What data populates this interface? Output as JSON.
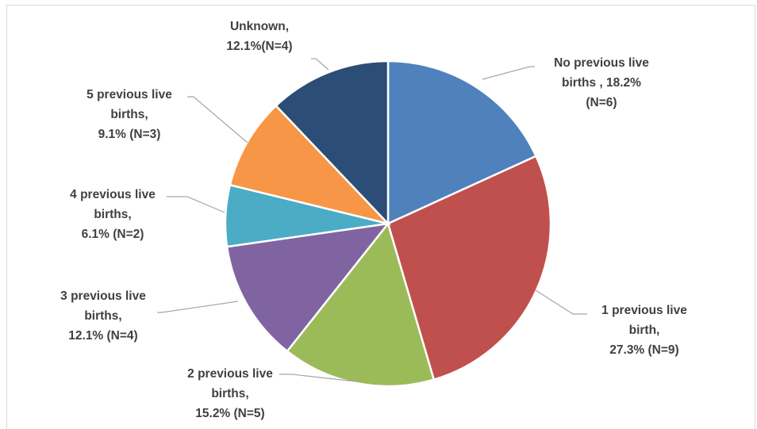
{
  "chart_data": {
    "type": "pie",
    "title": "",
    "slices": [
      {
        "label_lines": [
          "No previous live",
          "births , 18.2%",
          "(N=6)"
        ],
        "category": "No previous live births",
        "percent": 18.2,
        "n": 6,
        "color": "#4f81bd"
      },
      {
        "label_lines": [
          "1 previous live",
          "birth,",
          "27.3% (N=9)"
        ],
        "category": "1 previous live birth",
        "percent": 27.3,
        "n": 9,
        "color": "#c0504d"
      },
      {
        "label_lines": [
          "2 previous live",
          "births,",
          "15.2% (N=5)"
        ],
        "category": "2 previous live births",
        "percent": 15.2,
        "n": 5,
        "color": "#9bbb59"
      },
      {
        "label_lines": [
          "3 previous live",
          "births,",
          "12.1% (N=4)"
        ],
        "category": "3 previous live births",
        "percent": 12.1,
        "n": 4,
        "color": "#8064a2"
      },
      {
        "label_lines": [
          "4 previous live",
          "births,",
          "6.1% (N=2)"
        ],
        "category": "4 previous live births",
        "percent": 6.1,
        "n": 2,
        "color": "#4bacc6"
      },
      {
        "label_lines": [
          "5 previous live",
          "births,",
          "9.1% (N=3)"
        ],
        "category": "5 previous live births",
        "percent": 9.1,
        "n": 3,
        "color": "#f79646"
      },
      {
        "label_lines": [
          "Unknown,",
          "12.1%(N=4)"
        ],
        "category": "Unknown",
        "percent": 12.1,
        "n": 4,
        "color": "#2c4d75"
      }
    ],
    "start_angle": "12 o'clock",
    "direction": "clockwise",
    "legend": "none",
    "label_placement": "outside-with-leader-lines"
  }
}
